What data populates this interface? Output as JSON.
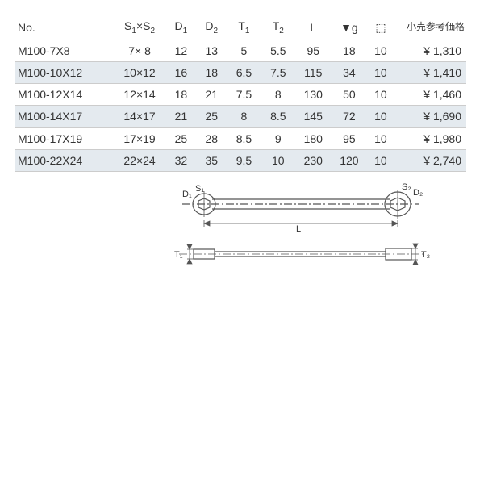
{
  "colors": {
    "border": "#cccccc",
    "alt_row_bg": "#e4eaef",
    "text": "#333333",
    "background": "#ffffff",
    "diagram_stroke": "#666666"
  },
  "table": {
    "headers": {
      "no": "No.",
      "s1s2_html": "S<span class=\"sub\">1</span>×S<span class=\"sub\">2</span>",
      "d1_html": "D<span class=\"sub\">1</span>",
      "d2_html": "D<span class=\"sub\">2</span>",
      "t1_html": "T<span class=\"sub\">1</span>",
      "t2_html": "T<span class=\"sub\">2</span>",
      "l": "L",
      "g": "▼g",
      "pack_icon": "⬚",
      "price": "小売参考価格"
    },
    "rows": [
      {
        "no": "M100-7X8",
        "s1s2": "7× 8",
        "d1": "12",
        "d2": "13",
        "t1": "5",
        "t2": "5.5",
        "l": "95",
        "g": "18",
        "pack": "10",
        "price": "¥  1,310"
      },
      {
        "no": "M100-10X12",
        "s1s2": "10×12",
        "d1": "16",
        "d2": "18",
        "t1": "6.5",
        "t2": "7.5",
        "l": "115",
        "g": "34",
        "pack": "10",
        "price": "¥  1,410"
      },
      {
        "no": "M100-12X14",
        "s1s2": "12×14",
        "d1": "18",
        "d2": "21",
        "t1": "7.5",
        "t2": "8",
        "l": "130",
        "g": "50",
        "pack": "10",
        "price": "¥  1,460"
      },
      {
        "no": "M100-14X17",
        "s1s2": "14×17",
        "d1": "21",
        "d2": "25",
        "t1": "8",
        "t2": "8.5",
        "l": "145",
        "g": "72",
        "pack": "10",
        "price": "¥  1,690"
      },
      {
        "no": "M100-17X19",
        "s1s2": "17×19",
        "d1": "25",
        "d2": "28",
        "t1": "8.5",
        "t2": "9",
        "l": "180",
        "g": "95",
        "pack": "10",
        "price": "¥  1,980"
      },
      {
        "no": "M100-22X24",
        "s1s2": "22×24",
        "d1": "32",
        "d2": "35",
        "t1": "9.5",
        "t2": "10",
        "l": "230",
        "g": "120",
        "pack": "10",
        "price": "¥  2,740"
      }
    ]
  },
  "diagram": {
    "labels": {
      "d1": "D₁",
      "s1": "S₁",
      "d2": "D₂",
      "s2": "S₂",
      "l": "L",
      "t1": "T₁",
      "t2": "T₂"
    }
  }
}
